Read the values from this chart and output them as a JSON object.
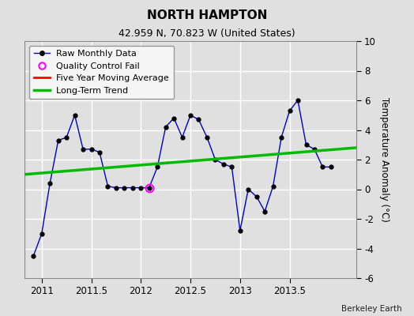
{
  "title": "NORTH HAMPTON",
  "subtitle": "42.959 N, 70.823 W (United States)",
  "credit": "Berkeley Earth",
  "ylabel": "Temperature Anomaly (°C)",
  "xlim": [
    2010.83,
    2014.17
  ],
  "ylim": [
    -6,
    10
  ],
  "yticks": [
    -6,
    -4,
    -2,
    0,
    2,
    4,
    6,
    8,
    10
  ],
  "xticks": [
    2011,
    2011.5,
    2012,
    2012.5,
    2013,
    2013.5
  ],
  "xticklabels": [
    "2011",
    "2011.5",
    "2012",
    "2012.5",
    "2013",
    "2013.5"
  ],
  "bg_color": "#e0e0e0",
  "plot_bg_color": "#e0e0e0",
  "grid_color": "#ffffff",
  "raw_x": [
    2010.917,
    2011.0,
    2011.083,
    2011.167,
    2011.25,
    2011.333,
    2011.417,
    2011.5,
    2011.583,
    2011.667,
    2011.75,
    2011.833,
    2011.917,
    2012.0,
    2012.083,
    2012.167,
    2012.25,
    2012.333,
    2012.417,
    2012.5,
    2012.583,
    2012.667,
    2012.75,
    2012.833,
    2012.917,
    2013.0,
    2013.083,
    2013.167,
    2013.25,
    2013.333,
    2013.417,
    2013.5,
    2013.583,
    2013.667,
    2013.75,
    2013.833,
    2013.917
  ],
  "raw_y": [
    -4.5,
    -3.0,
    0.4,
    3.3,
    3.5,
    5.0,
    2.7,
    2.7,
    2.5,
    0.2,
    0.1,
    0.1,
    0.1,
    0.1,
    0.1,
    1.5,
    4.2,
    4.8,
    3.5,
    5.0,
    4.7,
    3.5,
    2.0,
    1.7,
    1.5,
    -2.8,
    0.0,
    -0.5,
    -1.5,
    0.2,
    3.5,
    5.3,
    6.0,
    3.0,
    2.7,
    1.5,
    1.5
  ],
  "qc_fail_x": [
    2012.083
  ],
  "qc_fail_y": [
    0.1
  ],
  "trend_x": [
    2010.83,
    2014.17
  ],
  "trend_y": [
    1.0,
    2.8
  ],
  "raw_color": "#0000cc",
  "raw_marker_color": "#000000",
  "trend_color": "#00bb00",
  "mavg_color": "#ff0000",
  "qc_color": "#ff00ff",
  "legend_bg": "#f5f5f5",
  "title_fontsize": 11,
  "subtitle_fontsize": 9,
  "tick_fontsize": 8.5,
  "ylabel_fontsize": 8.5,
  "legend_fontsize": 8
}
